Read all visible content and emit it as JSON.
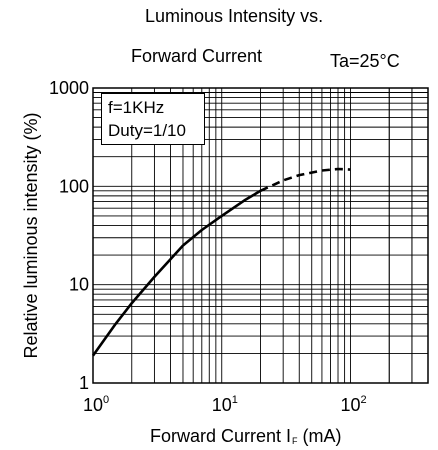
{
  "chart_data": {
    "type": "line",
    "title_line1": "Luminous Intensity vs.",
    "title_line2": "Forward Current",
    "condition": "Ta=25°C",
    "xlabel_main": "Forward Current  I",
    "xlabel_sub": "F",
    "xlabel_unit": " (mA)",
    "ylabel": "Relative luminous intensity (%)",
    "x_scale": "log",
    "y_scale": "log",
    "xlim": [
      1,
      400
    ],
    "ylim": [
      1,
      1000
    ],
    "grid": true,
    "x_ticks": [
      {
        "value": 1,
        "base": "10",
        "exp": "0"
      },
      {
        "value": 10,
        "base": "10",
        "exp": "1"
      },
      {
        "value": 100,
        "base": "10",
        "exp": "2"
      }
    ],
    "y_ticks": [
      {
        "value": 1,
        "label": "1"
      },
      {
        "value": 10,
        "label": "10"
      },
      {
        "value": 100,
        "label": "100"
      },
      {
        "value": 1000,
        "label": "1000"
      }
    ],
    "annotation_lines": [
      "f=1KHz",
      "Duty=1/10"
    ],
    "series": [
      {
        "style": "solid",
        "x": [
          1,
          1.5,
          2,
          3,
          5,
          7,
          10,
          15,
          20
        ],
        "y": [
          1.9,
          4.0,
          6.5,
          12,
          25,
          36,
          50,
          72,
          90
        ]
      },
      {
        "style": "dashed",
        "x": [
          20,
          30,
          40,
          60,
          80,
          100
        ],
        "y": [
          90,
          115,
          130,
          145,
          150,
          148
        ]
      }
    ]
  }
}
